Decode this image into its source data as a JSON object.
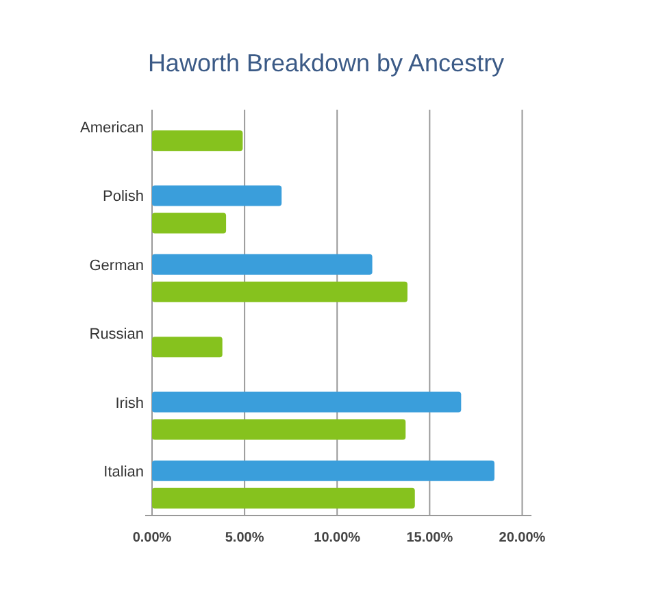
{
  "chart_data": {
    "type": "bar",
    "orientation": "horizontal",
    "title": "Haworth Breakdown by Ancestry",
    "categories": [
      "American",
      "Polish",
      "German",
      "Russian",
      "Irish",
      "Italian"
    ],
    "series": [
      {
        "color": "#3a9edb",
        "values": [
          null,
          7.0,
          11.9,
          null,
          16.7,
          18.5
        ]
      },
      {
        "color": "#86c21e",
        "values": [
          4.9,
          4.0,
          13.8,
          3.8,
          13.7,
          14.2
        ]
      }
    ],
    "xlim": [
      0,
      20.5
    ],
    "xticks": [
      {
        "value": 0,
        "label": "0.00%"
      },
      {
        "value": 5,
        "label": "5.00%"
      },
      {
        "value": 10,
        "label": "10.00%"
      },
      {
        "value": 15,
        "label": "15.00%"
      },
      {
        "value": 20,
        "label": "20.00%"
      }
    ],
    "grid": "x"
  }
}
